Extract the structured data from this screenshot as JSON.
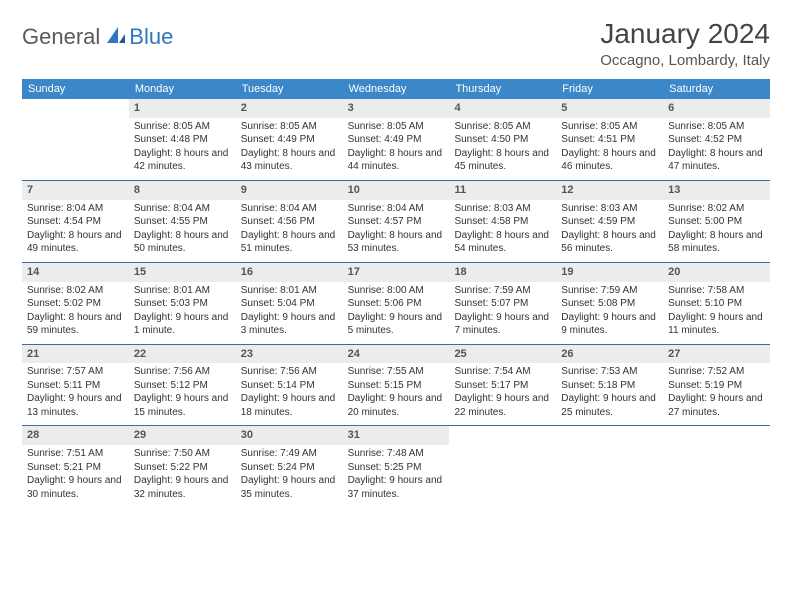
{
  "logo": {
    "general": "General",
    "blue": "Blue"
  },
  "title": "January 2024",
  "location": "Occagno, Lombardy, Italy",
  "colors": {
    "header_bg": "#3b87c8",
    "header_text": "#ffffff",
    "daynum_bg": "#ececec",
    "border": "#3b6ea0",
    "logo_blue": "#2f78bf",
    "logo_grey": "#5a5a5a"
  },
  "day_headers": [
    "Sunday",
    "Monday",
    "Tuesday",
    "Wednesday",
    "Thursday",
    "Friday",
    "Saturday"
  ],
  "weeks": [
    [
      {
        "n": "",
        "sr": "",
        "ss": "",
        "dl": ""
      },
      {
        "n": "1",
        "sr": "Sunrise: 8:05 AM",
        "ss": "Sunset: 4:48 PM",
        "dl": "Daylight: 8 hours and 42 minutes."
      },
      {
        "n": "2",
        "sr": "Sunrise: 8:05 AM",
        "ss": "Sunset: 4:49 PM",
        "dl": "Daylight: 8 hours and 43 minutes."
      },
      {
        "n": "3",
        "sr": "Sunrise: 8:05 AM",
        "ss": "Sunset: 4:49 PM",
        "dl": "Daylight: 8 hours and 44 minutes."
      },
      {
        "n": "4",
        "sr": "Sunrise: 8:05 AM",
        "ss": "Sunset: 4:50 PM",
        "dl": "Daylight: 8 hours and 45 minutes."
      },
      {
        "n": "5",
        "sr": "Sunrise: 8:05 AM",
        "ss": "Sunset: 4:51 PM",
        "dl": "Daylight: 8 hours and 46 minutes."
      },
      {
        "n": "6",
        "sr": "Sunrise: 8:05 AM",
        "ss": "Sunset: 4:52 PM",
        "dl": "Daylight: 8 hours and 47 minutes."
      }
    ],
    [
      {
        "n": "7",
        "sr": "Sunrise: 8:04 AM",
        "ss": "Sunset: 4:54 PM",
        "dl": "Daylight: 8 hours and 49 minutes."
      },
      {
        "n": "8",
        "sr": "Sunrise: 8:04 AM",
        "ss": "Sunset: 4:55 PM",
        "dl": "Daylight: 8 hours and 50 minutes."
      },
      {
        "n": "9",
        "sr": "Sunrise: 8:04 AM",
        "ss": "Sunset: 4:56 PM",
        "dl": "Daylight: 8 hours and 51 minutes."
      },
      {
        "n": "10",
        "sr": "Sunrise: 8:04 AM",
        "ss": "Sunset: 4:57 PM",
        "dl": "Daylight: 8 hours and 53 minutes."
      },
      {
        "n": "11",
        "sr": "Sunrise: 8:03 AM",
        "ss": "Sunset: 4:58 PM",
        "dl": "Daylight: 8 hours and 54 minutes."
      },
      {
        "n": "12",
        "sr": "Sunrise: 8:03 AM",
        "ss": "Sunset: 4:59 PM",
        "dl": "Daylight: 8 hours and 56 minutes."
      },
      {
        "n": "13",
        "sr": "Sunrise: 8:02 AM",
        "ss": "Sunset: 5:00 PM",
        "dl": "Daylight: 8 hours and 58 minutes."
      }
    ],
    [
      {
        "n": "14",
        "sr": "Sunrise: 8:02 AM",
        "ss": "Sunset: 5:02 PM",
        "dl": "Daylight: 8 hours and 59 minutes."
      },
      {
        "n": "15",
        "sr": "Sunrise: 8:01 AM",
        "ss": "Sunset: 5:03 PM",
        "dl": "Daylight: 9 hours and 1 minute."
      },
      {
        "n": "16",
        "sr": "Sunrise: 8:01 AM",
        "ss": "Sunset: 5:04 PM",
        "dl": "Daylight: 9 hours and 3 minutes."
      },
      {
        "n": "17",
        "sr": "Sunrise: 8:00 AM",
        "ss": "Sunset: 5:06 PM",
        "dl": "Daylight: 9 hours and 5 minutes."
      },
      {
        "n": "18",
        "sr": "Sunrise: 7:59 AM",
        "ss": "Sunset: 5:07 PM",
        "dl": "Daylight: 9 hours and 7 minutes."
      },
      {
        "n": "19",
        "sr": "Sunrise: 7:59 AM",
        "ss": "Sunset: 5:08 PM",
        "dl": "Daylight: 9 hours and 9 minutes."
      },
      {
        "n": "20",
        "sr": "Sunrise: 7:58 AM",
        "ss": "Sunset: 5:10 PM",
        "dl": "Daylight: 9 hours and 11 minutes."
      }
    ],
    [
      {
        "n": "21",
        "sr": "Sunrise: 7:57 AM",
        "ss": "Sunset: 5:11 PM",
        "dl": "Daylight: 9 hours and 13 minutes."
      },
      {
        "n": "22",
        "sr": "Sunrise: 7:56 AM",
        "ss": "Sunset: 5:12 PM",
        "dl": "Daylight: 9 hours and 15 minutes."
      },
      {
        "n": "23",
        "sr": "Sunrise: 7:56 AM",
        "ss": "Sunset: 5:14 PM",
        "dl": "Daylight: 9 hours and 18 minutes."
      },
      {
        "n": "24",
        "sr": "Sunrise: 7:55 AM",
        "ss": "Sunset: 5:15 PM",
        "dl": "Daylight: 9 hours and 20 minutes."
      },
      {
        "n": "25",
        "sr": "Sunrise: 7:54 AM",
        "ss": "Sunset: 5:17 PM",
        "dl": "Daylight: 9 hours and 22 minutes."
      },
      {
        "n": "26",
        "sr": "Sunrise: 7:53 AM",
        "ss": "Sunset: 5:18 PM",
        "dl": "Daylight: 9 hours and 25 minutes."
      },
      {
        "n": "27",
        "sr": "Sunrise: 7:52 AM",
        "ss": "Sunset: 5:19 PM",
        "dl": "Daylight: 9 hours and 27 minutes."
      }
    ],
    [
      {
        "n": "28",
        "sr": "Sunrise: 7:51 AM",
        "ss": "Sunset: 5:21 PM",
        "dl": "Daylight: 9 hours and 30 minutes."
      },
      {
        "n": "29",
        "sr": "Sunrise: 7:50 AM",
        "ss": "Sunset: 5:22 PM",
        "dl": "Daylight: 9 hours and 32 minutes."
      },
      {
        "n": "30",
        "sr": "Sunrise: 7:49 AM",
        "ss": "Sunset: 5:24 PM",
        "dl": "Daylight: 9 hours and 35 minutes."
      },
      {
        "n": "31",
        "sr": "Sunrise: 7:48 AM",
        "ss": "Sunset: 5:25 PM",
        "dl": "Daylight: 9 hours and 37 minutes."
      },
      {
        "n": "",
        "sr": "",
        "ss": "",
        "dl": ""
      },
      {
        "n": "",
        "sr": "",
        "ss": "",
        "dl": ""
      },
      {
        "n": "",
        "sr": "",
        "ss": "",
        "dl": ""
      }
    ]
  ]
}
